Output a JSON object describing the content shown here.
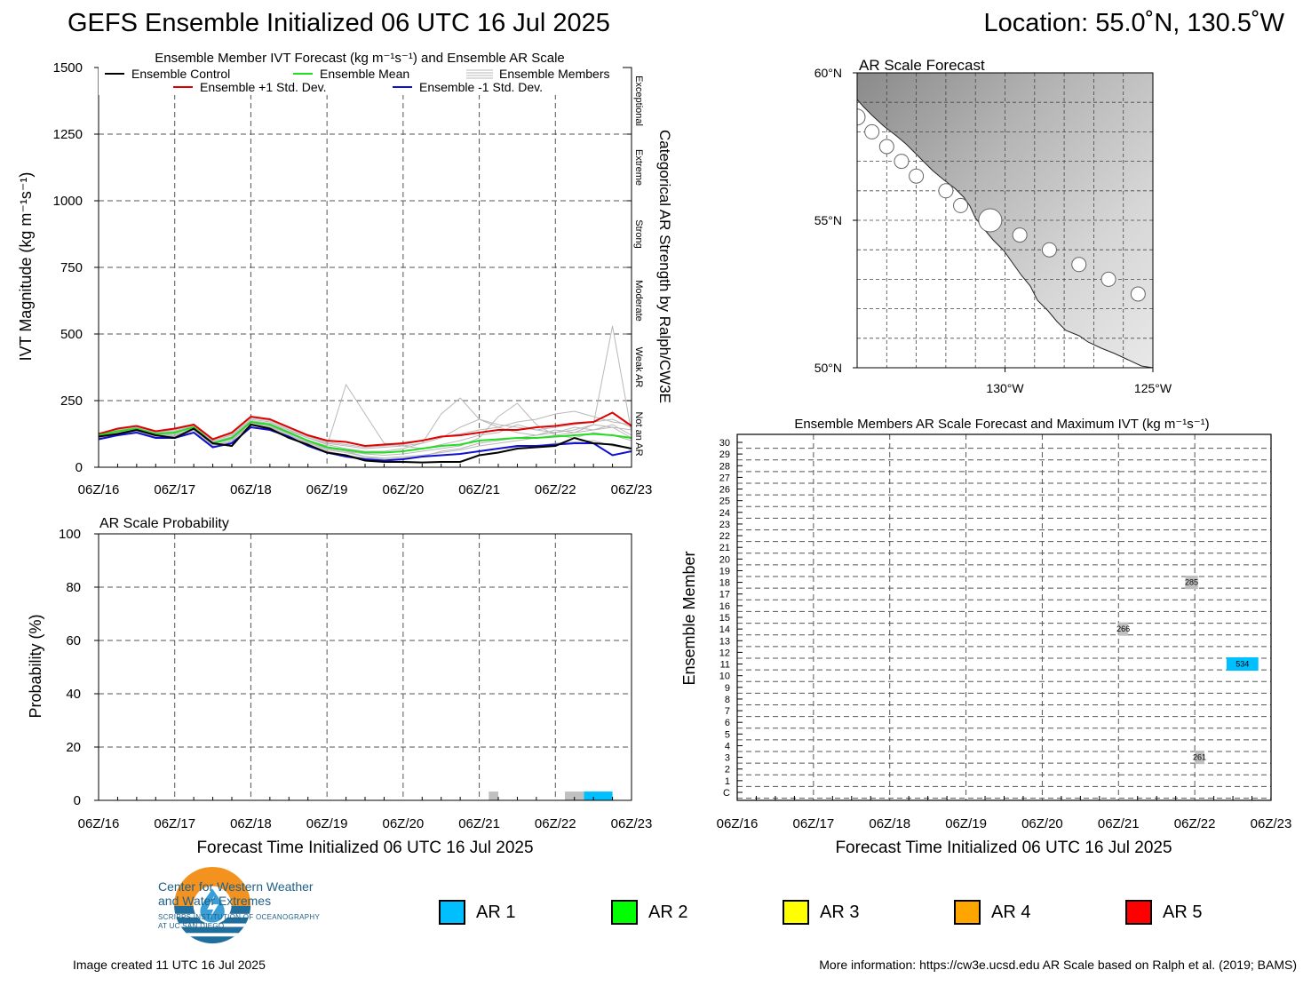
{
  "header": {
    "title": "GEFS Ensemble Initialized 06 UTC 16 Jul 2025",
    "location": "Location: 55.0˚N, 130.5˚W"
  },
  "colors": {
    "control": "#000000",
    "mean": "#22dd22",
    "plus_std": "#e00000",
    "minus_std": "#1010d0",
    "members": "#b8b8b8",
    "ar1": "#00bfff",
    "ar2": "#00ff00",
    "ar3": "#ffff00",
    "ar4": "#ffa500",
    "ar5": "#ff0000",
    "not_ar_box": "#c0c0c0",
    "logo_orange": "#f3921f",
    "logo_blue": "#1f6e9c"
  },
  "chart_data": [
    {
      "id": "ivt",
      "type": "line",
      "title": "Ensemble Member IVT Forecast (kg m⁻¹s⁻¹) and Ensemble AR Scale",
      "ylabel": "IVT Magnitude (kg m⁻¹s⁻¹)",
      "right_label": "Categorical AR Strength by Ralph/CW3E",
      "x_ticks": [
        "06Z/16",
        "06Z/17",
        "06Z/18",
        "06Z/19",
        "06Z/20",
        "06Z/21",
        "06Z/22",
        "06Z/23"
      ],
      "x_range_hours": [
        0,
        168
      ],
      "y_ticks": [
        0,
        250,
        500,
        750,
        1000,
        1250,
        1500
      ],
      "ylim": [
        0,
        1500
      ],
      "grid": true,
      "legend": {
        "position": "top",
        "entries": [
          "Ensemble Control",
          "Ensemble Mean",
          "Ensemble Members",
          "Ensemble +1 Std. Dev.",
          "Ensemble -1 Std. Dev."
        ]
      },
      "categories_right": [
        {
          "label": "Not an AR",
          "from": 0,
          "to": 250
        },
        {
          "label": "Weak AR",
          "from": 250,
          "to": 500
        },
        {
          "label": "Moderate",
          "from": 500,
          "to": 750
        },
        {
          "label": "Strong",
          "from": 750,
          "to": 1000
        },
        {
          "label": "Extreme",
          "from": 1000,
          "to": 1250
        },
        {
          "label": "Exceptional",
          "from": 1250,
          "to": 1500
        }
      ],
      "series": [
        {
          "name": "Ensemble Control",
          "x": [
            0,
            6,
            12,
            18,
            24,
            30,
            36,
            42,
            48,
            54,
            60,
            66,
            72,
            78,
            84,
            90,
            96,
            102,
            108,
            114,
            120,
            126,
            132,
            138,
            144,
            150,
            156,
            162,
            168
          ],
          "values": [
            115,
            125,
            140,
            120,
            110,
            145,
            90,
            80,
            160,
            145,
            110,
            85,
            55,
            45,
            25,
            20,
            20,
            18,
            20,
            20,
            45,
            55,
            70,
            75,
            80,
            110,
            90,
            85,
            70
          ]
        },
        {
          "name": "Ensemble Mean",
          "x": [
            0,
            6,
            12,
            18,
            24,
            30,
            36,
            42,
            48,
            54,
            60,
            66,
            72,
            78,
            84,
            90,
            96,
            102,
            108,
            114,
            120,
            126,
            132,
            138,
            144,
            150,
            156,
            162,
            168
          ],
          "values": [
            120,
            135,
            145,
            125,
            130,
            150,
            90,
            110,
            170,
            160,
            130,
            100,
            75,
            65,
            55,
            55,
            60,
            70,
            80,
            85,
            100,
            105,
            110,
            110,
            115,
            120,
            125,
            120,
            110
          ]
        },
        {
          "name": "Ensemble +1 Std. Dev.",
          "x": [
            0,
            6,
            12,
            18,
            24,
            30,
            36,
            42,
            48,
            54,
            60,
            66,
            72,
            78,
            84,
            90,
            96,
            102,
            108,
            114,
            120,
            126,
            132,
            138,
            144,
            150,
            156,
            162,
            168
          ],
          "values": [
            125,
            145,
            155,
            135,
            145,
            160,
            105,
            130,
            190,
            180,
            150,
            120,
            100,
            95,
            80,
            85,
            90,
            100,
            115,
            120,
            130,
            140,
            140,
            150,
            155,
            165,
            170,
            205,
            155
          ]
        },
        {
          "name": "Ensemble -1 Std. Dev.",
          "x": [
            0,
            6,
            12,
            18,
            24,
            30,
            36,
            42,
            48,
            54,
            60,
            66,
            72,
            78,
            84,
            90,
            96,
            102,
            108,
            114,
            120,
            126,
            132,
            138,
            144,
            150,
            156,
            162,
            168
          ],
          "values": [
            105,
            120,
            130,
            110,
            110,
            130,
            75,
            90,
            150,
            140,
            115,
            80,
            55,
            40,
            30,
            25,
            30,
            40,
            45,
            50,
            60,
            70,
            80,
            80,
            85,
            90,
            90,
            45,
            60
          ]
        },
        {
          "name": "Ensemble Members",
          "x": [
            0,
            6,
            12,
            18,
            24,
            30,
            36,
            42,
            48,
            54,
            60,
            66,
            72,
            78,
            84,
            90,
            96,
            102,
            108,
            114,
            120,
            126,
            132,
            138,
            144,
            150,
            156,
            162,
            168
          ],
          "members": [
            [
              110,
              130,
              140,
              120,
              115,
              150,
              85,
              95,
              170,
              150,
              120,
              90,
              70,
              60,
              40,
              30,
              30,
              40,
              60,
              70,
              90,
              100,
              110,
              120,
              130,
              140,
              160,
              530,
              130
            ],
            [
              120,
              135,
              150,
              130,
              140,
              160,
              100,
              120,
              180,
              170,
              140,
              110,
              90,
              80,
              70,
              75,
              80,
              90,
              110,
              150,
              180,
              160,
              150,
              140,
              150,
              160,
              170,
              180,
              150
            ],
            [
              115,
              125,
              145,
              120,
              125,
              140,
              90,
              110,
              165,
              150,
              130,
              100,
              80,
              310,
              200,
              90,
              80,
              70,
              85,
              100,
              120,
              130,
              160,
              140,
              130,
              150,
              140,
              160,
              120
            ],
            [
              125,
              140,
              150,
              130,
              130,
              155,
              95,
              115,
              175,
              165,
              135,
              110,
              85,
              70,
              60,
              60,
              70,
              90,
              200,
              260,
              180,
              150,
              130,
              120,
              140,
              130,
              160,
              150,
              140
            ],
            [
              118,
              130,
              140,
              125,
              120,
              145,
              88,
              105,
              160,
              155,
              125,
              95,
              70,
              60,
              50,
              45,
              50,
              60,
              70,
              80,
              110,
              190,
              240,
              160,
              120,
              110,
              130,
              120,
              100
            ],
            [
              112,
              128,
              138,
              118,
              118,
              142,
              82,
              100,
              158,
              148,
              118,
              92,
              65,
              55,
              40,
              35,
              40,
              45,
              55,
              65,
              80,
              90,
              100,
              110,
              120,
              130,
              140,
              150,
              110
            ],
            [
              122,
              138,
              148,
              128,
              135,
              158,
              98,
              125,
              185,
              175,
              145,
              115,
              95,
              85,
              75,
              80,
              85,
              100,
              115,
              125,
              140,
              150,
              170,
              180,
              200,
              210,
              190,
              170,
              160
            ],
            [
              108,
              122,
              135,
              115,
              108,
              138,
              78,
              92,
              150,
              140,
              110,
              85,
              60,
              45,
              35,
              30,
              35,
              40,
              45,
              50,
              60,
              70,
              75,
              80,
              90,
              95,
              100,
              80,
              70
            ]
          ]
        }
      ]
    },
    {
      "id": "prob",
      "type": "bar",
      "title": "AR Scale Probability",
      "ylabel": "Probability (%)",
      "xlabel": "Forecast Time Initialized 06 UTC 16 Jul 2025",
      "x_ticks": [
        "06Z/16",
        "06Z/17",
        "06Z/18",
        "06Z/19",
        "06Z/20",
        "06Z/21",
        "06Z/22",
        "06Z/23"
      ],
      "x_range_hours": [
        0,
        168
      ],
      "y_ticks": [
        0,
        20,
        40,
        60,
        80,
        100
      ],
      "ylim": [
        0,
        100
      ],
      "grid": true,
      "bars": [
        {
          "start_hour": 123,
          "end_hour": 126,
          "value": 3.3,
          "category": "not_ar"
        },
        {
          "start_hour": 147,
          "end_hour": 153,
          "value": 3.3,
          "category": "not_ar"
        },
        {
          "start_hour": 153,
          "end_hour": 162,
          "value": 3.3,
          "category": "ar1"
        }
      ]
    },
    {
      "id": "map",
      "type": "scatter",
      "title": "AR Scale Forecast",
      "lat_ticks": [
        "60°N",
        "55°N",
        "50°N"
      ],
      "lon_ticks": [
        "130°W",
        "125°W"
      ],
      "lat_range": [
        50,
        60
      ],
      "lon_range": [
        -135,
        -125
      ],
      "points": [
        {
          "lon": -135.0,
          "lat": 58.5,
          "r": 9
        },
        {
          "lon": -134.5,
          "lat": 58.0,
          "r": 8
        },
        {
          "lon": -134.0,
          "lat": 57.5,
          "r": 8
        },
        {
          "lon": -133.5,
          "lat": 57.0,
          "r": 8
        },
        {
          "lon": -133.0,
          "lat": 56.5,
          "r": 8
        },
        {
          "lon": -132.0,
          "lat": 56.0,
          "r": 8
        },
        {
          "lon": -131.5,
          "lat": 55.5,
          "r": 8
        },
        {
          "lon": -130.5,
          "lat": 55.0,
          "r": 13
        },
        {
          "lon": -129.5,
          "lat": 54.5,
          "r": 8
        },
        {
          "lon": -128.5,
          "lat": 54.0,
          "r": 8
        },
        {
          "lon": -127.5,
          "lat": 53.5,
          "r": 8
        },
        {
          "lon": -126.5,
          "lat": 53.0,
          "r": 8
        },
        {
          "lon": -125.5,
          "lat": 52.5,
          "r": 8
        }
      ]
    },
    {
      "id": "members",
      "type": "heatmap",
      "title": "Ensemble Members AR Scale Forecast and Maximum IVT (kg m⁻¹s⁻¹)",
      "ylabel": "Ensemble Member",
      "xlabel": "Forecast Time Initialized 06 UTC 16 Jul 2025",
      "x_ticks": [
        "06Z/16",
        "06Z/17",
        "06Z/18",
        "06Z/19",
        "06Z/20",
        "06Z/21",
        "06Z/22",
        "06Z/23"
      ],
      "x_range_hours": [
        0,
        168
      ],
      "y_labels": [
        "C",
        "1",
        "2",
        "3",
        "4",
        "5",
        "6",
        "7",
        "8",
        "9",
        "10",
        "11",
        "12",
        "13",
        "14",
        "15",
        "16",
        "17",
        "18",
        "19",
        "20",
        "21",
        "22",
        "23",
        "24",
        "25",
        "26",
        "27",
        "28",
        "29",
        "30"
      ],
      "cells": [
        {
          "member": 18,
          "start_hour": 141,
          "end_hour": 145,
          "max_ivt": "285",
          "category": "not_ar"
        },
        {
          "member": 14,
          "start_hour": 120,
          "end_hour": 123,
          "max_ivt": "266",
          "category": "not_ar"
        },
        {
          "member": 11,
          "start_hour": 154,
          "end_hour": 164,
          "max_ivt": "534",
          "category": "ar1"
        },
        {
          "member": 3,
          "start_hour": 144,
          "end_hour": 147,
          "max_ivt": "261",
          "category": "not_ar"
        }
      ]
    }
  ],
  "legend_bottom": [
    {
      "label": "AR 1",
      "color_key": "ar1"
    },
    {
      "label": "AR 2",
      "color_key": "ar2"
    },
    {
      "label": "AR 3",
      "color_key": "ar3"
    },
    {
      "label": "AR 4",
      "color_key": "ar4"
    },
    {
      "label": "AR 5",
      "color_key": "ar5"
    }
  ],
  "logo": {
    "title_line1": "Center for Western Weather",
    "title_line2": "and Water Extremes",
    "sub_line1": "SCRIPPS INSTITUTION OF OCEANOGRAPHY",
    "sub_line2": "AT UC SAN DIEGO"
  },
  "footer": {
    "created": "Image created 11 UTC 16 Jul 2025",
    "more_info": "More information: https://cw3e.ucsd.edu AR Scale based on Ralph et al. (2019; BAMS)"
  }
}
